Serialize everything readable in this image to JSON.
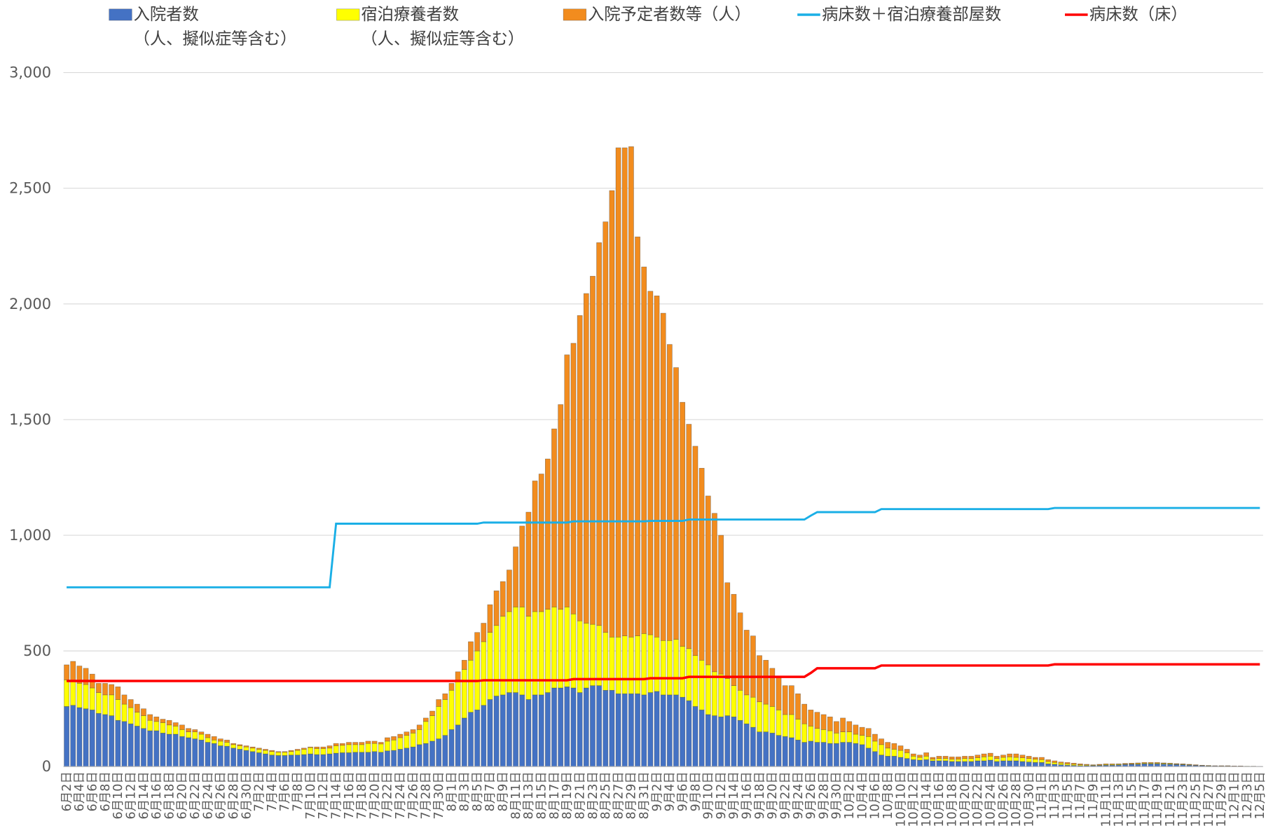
{
  "chart_data": {
    "type": "bar",
    "stacked": true,
    "categories": [
      "6月2日",
      null,
      "6月4日",
      null,
      "6月6日",
      null,
      "6月8日",
      null,
      "6月10日",
      null,
      "6月12日",
      null,
      "6月14日",
      null,
      "6月16日",
      null,
      "6月18日",
      null,
      "6月20日",
      null,
      "6月22日",
      null,
      "6月24日",
      null,
      "6月26日",
      null,
      "6月28日",
      null,
      "6月30日",
      null,
      "7月2日",
      null,
      "7月4日",
      null,
      "7月6日",
      null,
      "7月8日",
      null,
      "7月10日",
      null,
      "7月12日",
      null,
      "7月14日",
      null,
      "7月16日",
      null,
      "7月18日",
      null,
      "7月20日",
      null,
      "7月22日",
      null,
      "7月24日",
      null,
      "7月26日",
      null,
      "7月28日",
      null,
      "7月30日",
      null,
      "8月1日",
      null,
      "8月3日",
      null,
      "8月5日",
      null,
      "8月7日",
      null,
      "8月9日",
      null,
      "8月11日",
      null,
      "8月13日",
      null,
      "8月15日",
      null,
      "8月17日",
      null,
      "8月19日",
      null,
      "8月21日",
      null,
      "8月23日",
      null,
      "8月25日",
      null,
      "8月27日",
      null,
      "8月29日",
      null,
      "8月31日",
      null,
      "9月2日",
      null,
      "9月4日",
      null,
      "9月6日",
      null,
      "9月8日",
      null,
      "9月10日",
      null,
      "9月12日",
      null,
      "9月14日",
      null,
      "9月16日",
      null,
      "9月18日",
      null,
      "9月20日",
      null,
      "9月22日",
      null,
      "9月24日",
      null,
      "9月26日",
      null,
      "9月28日",
      null,
      "9月30日",
      null,
      "10月2日",
      null,
      "10月4日",
      null,
      "10月6日",
      null,
      "10月8日",
      null,
      "10月10日",
      null,
      "10月12日",
      null,
      "10月14日",
      null,
      "10月16日",
      null,
      "10月18日",
      null,
      "10月20日",
      null,
      "10月22日",
      null,
      "10月24日",
      null,
      "10月26日",
      null,
      "10月28日",
      null,
      "10月30日",
      null,
      "11月1日",
      null,
      "11月3日",
      null,
      "11月5日",
      null,
      "11月7日",
      null,
      "11月9日",
      null,
      "11月11日",
      null,
      "11月13日",
      null,
      "11月15日",
      null,
      "11月17日",
      null,
      "11月19日",
      null,
      "11月21日",
      null,
      "11月23日",
      null,
      "11月25日",
      null,
      "11月27日",
      null,
      "11月29日",
      null,
      "12月1日",
      null,
      "12月3日",
      null,
      "12月5日"
    ],
    "series": [
      {
        "name": "入院者数\n（人、擬似症等含む）",
        "color": "#4472c4",
        "type": "bar",
        "values": [
          260,
          265,
          255,
          250,
          245,
          230,
          225,
          220,
          200,
          195,
          185,
          175,
          165,
          155,
          155,
          145,
          140,
          140,
          130,
          125,
          120,
          115,
          105,
          100,
          90,
          88,
          80,
          75,
          70,
          65,
          60,
          55,
          50,
          48,
          48,
          50,
          50,
          52,
          55,
          52,
          52,
          55,
          58,
          60,
          60,
          62,
          62,
          62,
          65,
          62,
          68,
          70,
          75,
          80,
          85,
          95,
          100,
          110,
          120,
          135,
          160,
          180,
          210,
          235,
          245,
          265,
          290,
          305,
          310,
          320,
          320,
          310,
          290,
          310,
          310,
          320,
          340,
          340,
          345,
          340,
          320,
          340,
          350,
          350,
          330,
          330,
          315,
          315,
          315,
          315,
          310,
          320,
          325,
          310,
          310,
          310,
          300,
          285,
          260,
          245,
          225,
          220,
          215,
          220,
          215,
          200,
          185,
          170,
          150,
          150,
          145,
          135,
          130,
          125,
          115,
          105,
          110,
          105,
          105,
          100,
          100,
          105,
          105,
          100,
          95,
          80,
          65,
          50,
          45,
          45,
          40,
          35,
          30,
          28,
          30,
          25,
          25,
          25,
          22,
          22,
          22,
          22,
          25,
          25,
          28,
          22,
          25,
          25,
          25,
          22,
          20,
          18,
          18,
          12,
          10,
          8,
          6,
          5,
          4,
          4,
          4,
          5,
          6,
          6,
          7,
          9,
          10,
          10,
          12,
          12,
          12,
          11,
          10,
          9,
          8,
          6,
          5,
          4,
          3,
          3,
          2,
          2,
          2,
          2,
          1,
          1,
          1
        ]
      },
      {
        "name": "宿泊療養者数\n（人、擬似症等含む）",
        "color": "#ffff00",
        "type": "bar",
        "values": [
          115,
          105,
          105,
          105,
          95,
          90,
          85,
          90,
          90,
          75,
          70,
          60,
          55,
          45,
          40,
          45,
          40,
          35,
          30,
          25,
          30,
          25,
          20,
          15,
          20,
          17,
          15,
          15,
          15,
          15,
          15,
          15,
          15,
          14,
          14,
          15,
          20,
          23,
          27,
          26,
          26,
          25,
          32,
          32,
          35,
          33,
          33,
          38,
          35,
          36,
          42,
          45,
          50,
          55,
          60,
          65,
          95,
          110,
          140,
          155,
          170,
          190,
          210,
          225,
          255,
          275,
          290,
          305,
          340,
          350,
          370,
          380,
          360,
          360,
          360,
          360,
          350,
          340,
          345,
          320,
          310,
          280,
          265,
          260,
          250,
          230,
          245,
          250,
          245,
          250,
          265,
          250,
          235,
          235,
          235,
          240,
          220,
          225,
          220,
          215,
          215,
          190,
          185,
          160,
          135,
          130,
          125,
          130,
          130,
          120,
          115,
          110,
          95,
          100,
          90,
          80,
          65,
          60,
          55,
          55,
          45,
          45,
          45,
          40,
          40,
          50,
          45,
          45,
          35,
          30,
          30,
          25,
          15,
          12,
          15,
          7,
          10,
          10,
          10,
          10,
          13,
          13,
          13,
          17,
          17,
          13,
          15,
          17,
          15,
          16,
          15,
          14,
          12,
          10,
          8,
          7,
          6,
          5,
          4,
          3,
          2,
          2,
          3,
          3,
          3,
          2,
          2,
          3,
          3,
          3,
          3,
          3,
          3,
          2,
          2,
          2,
          1,
          1,
          1,
          0,
          1,
          1,
          0,
          0,
          1,
          0,
          0
        ]
      },
      {
        "name": "入院予定者数等（人）",
        "color": "#f28c1e",
        "type": "bar",
        "values": [
          65,
          85,
          75,
          70,
          60,
          40,
          50,
          45,
          55,
          40,
          35,
          35,
          30,
          25,
          20,
          15,
          20,
          15,
          20,
          15,
          10,
          10,
          15,
          15,
          10,
          10,
          5,
          5,
          5,
          5,
          5,
          5,
          5,
          3,
          3,
          5,
          5,
          5,
          3,
          7,
          7,
          10,
          10,
          8,
          10,
          10,
          10,
          10,
          10,
          7,
          15,
          15,
          15,
          15,
          15,
          20,
          15,
          20,
          30,
          25,
          30,
          40,
          40,
          80,
          80,
          80,
          120,
          150,
          150,
          180,
          260,
          350,
          450,
          565,
          595,
          650,
          770,
          885,
          1090,
          1170,
          1320,
          1425,
          1505,
          1655,
          1775,
          1930,
          2115,
          2110,
          2120,
          1725,
          1585,
          1485,
          1475,
          1415,
          1280,
          1175,
          1055,
          970,
          905,
          830,
          730,
          685,
          600,
          415,
          395,
          335,
          280,
          265,
          200,
          190,
          165,
          140,
          125,
          125,
          110,
          85,
          70,
          70,
          65,
          60,
          50,
          60,
          45,
          40,
          35,
          35,
          30,
          25,
          25,
          25,
          20,
          15,
          10,
          10,
          15,
          8,
          10,
          10,
          10,
          10,
          10,
          10,
          12,
          13,
          13,
          10,
          10,
          13,
          15,
          12,
          10,
          8,
          10,
          8,
          7,
          5,
          6,
          5,
          4,
          3,
          2,
          3,
          3,
          3,
          2,
          3,
          3,
          3,
          3,
          3,
          3,
          2,
          2,
          2,
          2,
          2,
          2,
          1,
          1,
          1,
          1,
          1,
          1,
          1,
          0,
          1,
          0
        ]
      },
      {
        "name": "病床数＋宿泊療養部屋数",
        "color": "#1aafe6",
        "type": "line",
        "values": [
          775,
          775,
          775,
          775,
          775,
          775,
          775,
          775,
          775,
          775,
          775,
          775,
          775,
          775,
          775,
          775,
          775,
          775,
          775,
          775,
          775,
          775,
          775,
          775,
          775,
          775,
          775,
          775,
          775,
          775,
          775,
          775,
          775,
          775,
          775,
          775,
          775,
          775,
          775,
          775,
          775,
          775,
          1050,
          1050,
          1050,
          1050,
          1050,
          1050,
          1050,
          1050,
          1050,
          1050,
          1050,
          1050,
          1050,
          1050,
          1050,
          1050,
          1050,
          1050,
          1050,
          1050,
          1050,
          1050,
          1050,
          1055,
          1055,
          1055,
          1055,
          1055,
          1055,
          1055,
          1055,
          1055,
          1055,
          1055,
          1055,
          1055,
          1055,
          1060,
          1060,
          1060,
          1060,
          1060,
          1060,
          1060,
          1060,
          1060,
          1060,
          1060,
          1060,
          1062,
          1062,
          1062,
          1062,
          1062,
          1062,
          1068,
          1068,
          1068,
          1068,
          1068,
          1068,
          1068,
          1068,
          1068,
          1068,
          1068,
          1068,
          1068,
          1068,
          1068,
          1068,
          1068,
          1068,
          1068,
          1085,
          1100,
          1100,
          1100,
          1100,
          1100,
          1100,
          1100,
          1100,
          1100,
          1100,
          1113,
          1113,
          1113,
          1113,
          1113,
          1113,
          1113,
          1113,
          1113,
          1113,
          1113,
          1113,
          1113,
          1113,
          1113,
          1113,
          1113,
          1113,
          1113,
          1113,
          1113,
          1113,
          1113,
          1113,
          1113,
          1113,
          1113,
          1118,
          1118,
          1118,
          1118,
          1118,
          1118,
          1118,
          1118,
          1118,
          1118,
          1118,
          1118,
          1118,
          1118,
          1118,
          1118,
          1118,
          1118,
          1118,
          1118,
          1118,
          1118,
          1118,
          1118,
          1118,
          1118,
          1118,
          1118,
          1118,
          1118,
          1118,
          1118,
          1118
        ]
      },
      {
        "name": "病床数（床）",
        "color": "#ff0000",
        "type": "line",
        "values": [
          370,
          370,
          370,
          370,
          370,
          370,
          370,
          370,
          370,
          370,
          370,
          370,
          370,
          370,
          370,
          370,
          370,
          370,
          370,
          370,
          370,
          370,
          370,
          370,
          370,
          370,
          370,
          370,
          370,
          370,
          370,
          370,
          370,
          370,
          370,
          370,
          370,
          370,
          370,
          370,
          370,
          370,
          370,
          370,
          370,
          370,
          370,
          370,
          370,
          370,
          370,
          370,
          370,
          370,
          370,
          370,
          370,
          370,
          370,
          370,
          370,
          370,
          370,
          370,
          370,
          373,
          373,
          373,
          373,
          373,
          373,
          373,
          373,
          373,
          373,
          373,
          373,
          373,
          373,
          378,
          378,
          378,
          378,
          378,
          378,
          378,
          378,
          378,
          378,
          378,
          378,
          382,
          382,
          382,
          382,
          382,
          382,
          388,
          388,
          388,
          388,
          388,
          388,
          388,
          388,
          388,
          388,
          388,
          388,
          388,
          388,
          388,
          388,
          388,
          388,
          388,
          405,
          425,
          425,
          425,
          425,
          425,
          425,
          425,
          425,
          425,
          425,
          437,
          437,
          437,
          437,
          437,
          437,
          437,
          437,
          437,
          437,
          437,
          437,
          437,
          437,
          437,
          437,
          437,
          437,
          437,
          437,
          437,
          437,
          437,
          437,
          437,
          437,
          437,
          442,
          442,
          442,
          442,
          442,
          442,
          442,
          442,
          442,
          442,
          442,
          442,
          442,
          442,
          442,
          442,
          442,
          442,
          442,
          442,
          442,
          442,
          442,
          442,
          442,
          442,
          442,
          442,
          442,
          442,
          442,
          442,
          442
        ]
      }
    ],
    "ylim": [
      0,
      3000
    ],
    "yticks": [
      0,
      500,
      {
        "value": 1000,
        "label": "1,000"
      },
      {
        "value": 1500,
        "label": "1,500"
      },
      {
        "value": 2000,
        "label": "2,000"
      },
      {
        "value": 2500,
        "label": "2,500"
      },
      {
        "value": 3000,
        "label": "3,000"
      }
    ],
    "grid": true,
    "legend": "top"
  }
}
